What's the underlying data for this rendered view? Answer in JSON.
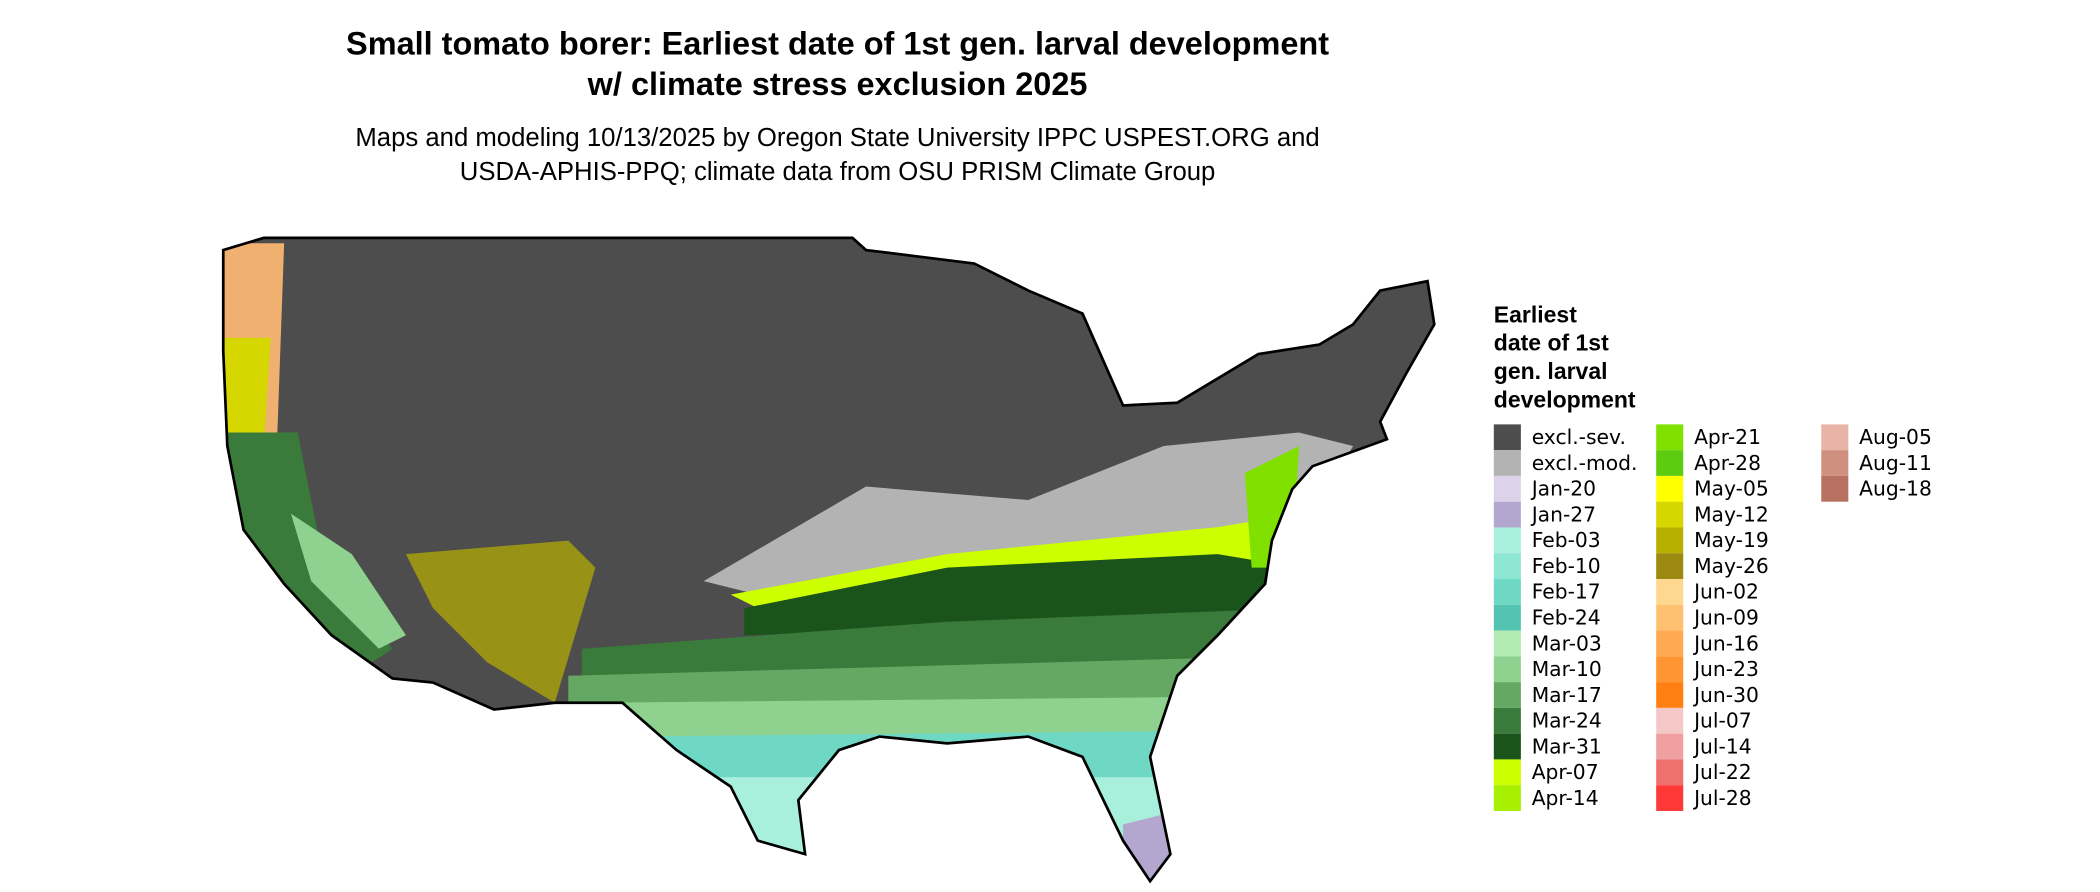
{
  "header": {
    "title": [
      "Small tomato borer: Earliest date of 1st gen. larval development",
      "w/ climate stress exclusion 2025"
    ],
    "subtitle": [
      "Maps and modeling 10/13/2025 by Oregon State University IPPC USPEST.ORG and",
      "USDA-APHIS-PPQ; climate data from OSU PRISM Climate Group"
    ]
  },
  "legend": {
    "title": [
      "Earliest",
      "date of 1st",
      "gen. larval",
      "development"
    ],
    "items": [
      {
        "label": "excl.-sev.",
        "color": "#4d4d4d"
      },
      {
        "label": "excl.-mod.",
        "color": "#b3b3b3"
      },
      {
        "label": "Jan-20",
        "color": "#dcd2ea"
      },
      {
        "label": "Jan-27",
        "color": "#b3a6cf"
      },
      {
        "label": "Feb-03",
        "color": "#a8f0dc"
      },
      {
        "label": "Feb-10",
        "color": "#8ce6d2"
      },
      {
        "label": "Feb-17",
        "color": "#6fd8c5"
      },
      {
        "label": "Feb-24",
        "color": "#55c3b2"
      },
      {
        "label": "Mar-03",
        "color": "#b2ecb2"
      },
      {
        "label": "Mar-10",
        "color": "#8fd28f"
      },
      {
        "label": "Mar-17",
        "color": "#64a864"
      },
      {
        "label": "Mar-24",
        "color": "#3a7a3a"
      },
      {
        "label": "Mar-31",
        "color": "#1a541a"
      },
      {
        "label": "Apr-07",
        "color": "#ccff00"
      },
      {
        "label": "Apr-14",
        "color": "#a6f000"
      },
      {
        "label": "Apr-21",
        "color": "#80e000"
      },
      {
        "label": "Apr-28",
        "color": "#5ccc10"
      },
      {
        "label": "May-05",
        "color": "#ffff00"
      },
      {
        "label": "May-12",
        "color": "#d6d600"
      },
      {
        "label": "May-19",
        "color": "#b8b000"
      },
      {
        "label": "May-26",
        "color": "#9c8a10"
      },
      {
        "label": "Jun-02",
        "color": "#ffd890"
      },
      {
        "label": "Jun-09",
        "color": "#ffc070"
      },
      {
        "label": "Jun-16",
        "color": "#ffaa50"
      },
      {
        "label": "Jun-23",
        "color": "#ff9633"
      },
      {
        "label": "Jun-30",
        "color": "#ff8010"
      },
      {
        "label": "Jul-07",
        "color": "#f5c8c8"
      },
      {
        "label": "Jul-14",
        "color": "#f0a0a0"
      },
      {
        "label": "Jul-22",
        "color": "#f07070"
      },
      {
        "label": "Jul-28",
        "color": "#ff3838"
      },
      {
        "label": "Aug-05",
        "color": "#e8b4a8"
      },
      {
        "label": "Aug-11",
        "color": "#d09080"
      },
      {
        "label": "Aug-18",
        "color": "#b87060"
      }
    ]
  }
}
